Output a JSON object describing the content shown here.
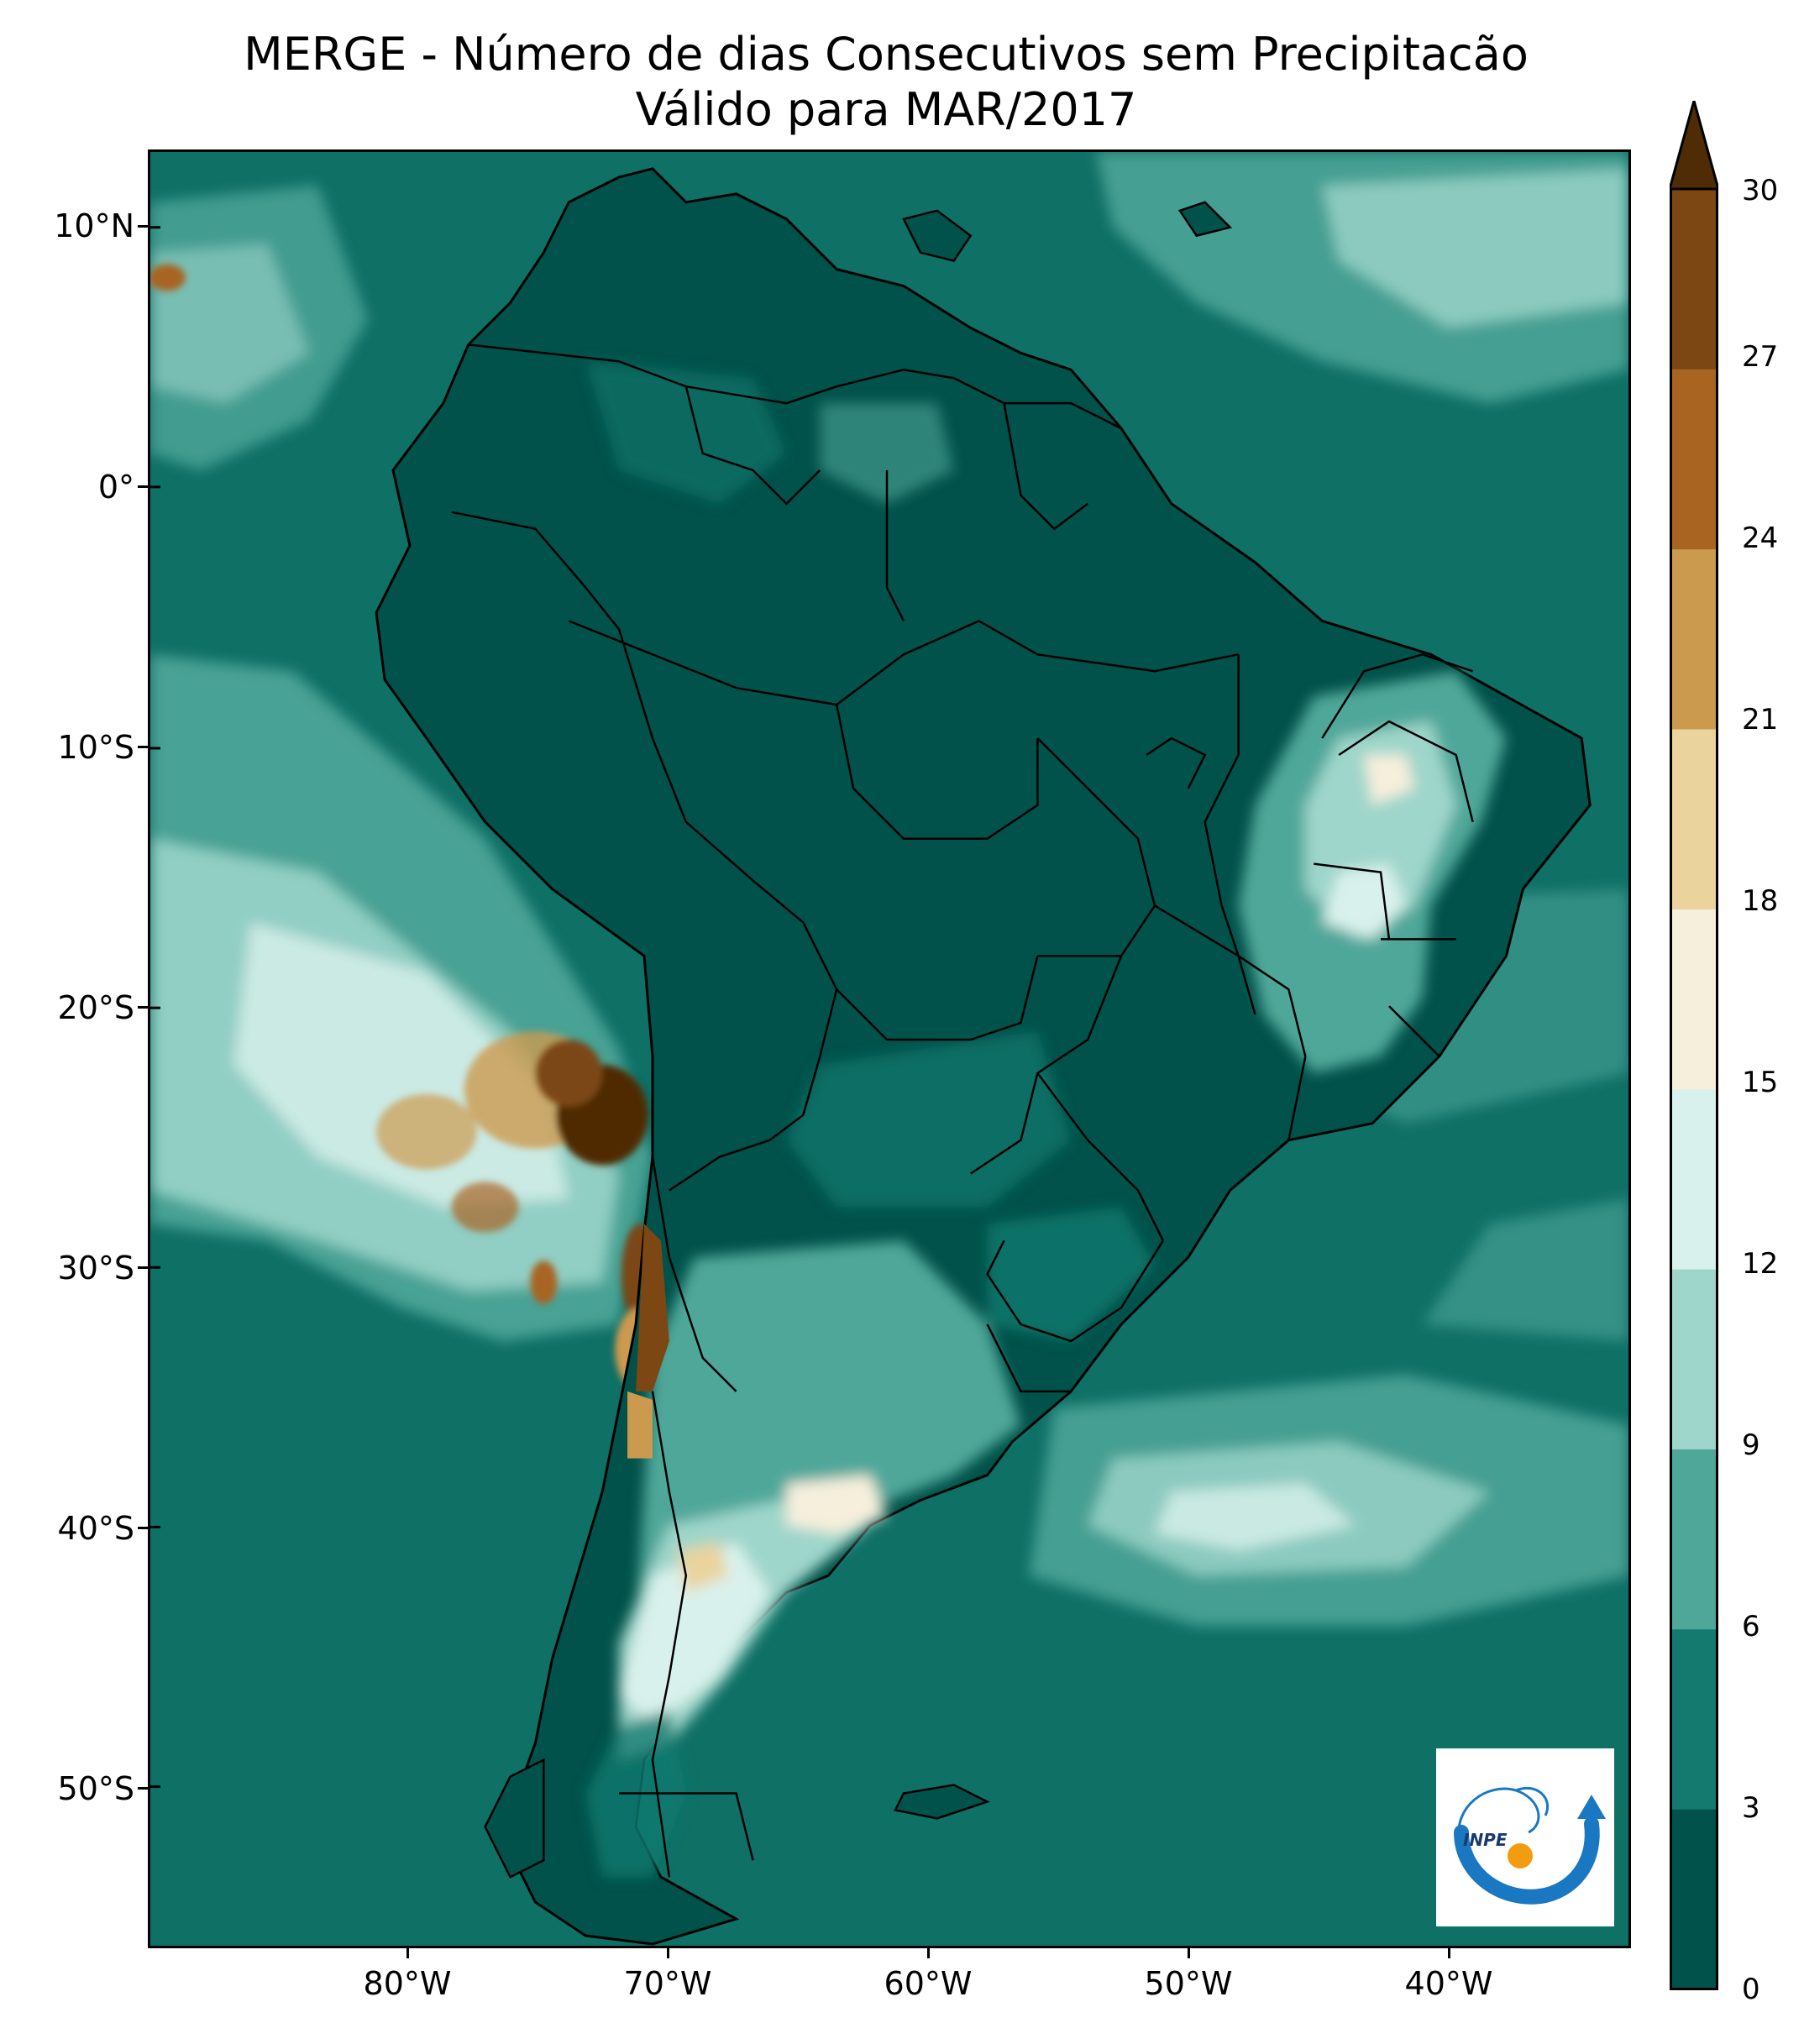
{
  "title": {
    "line1": "MERGE - Número de dias Consecutivos sem Precipitacão",
    "line2": "Válido para MAR/2017"
  },
  "axes": {
    "lat_ticks": [
      "10°N",
      "0°",
      "10°S",
      "20°S",
      "30°S",
      "40°S",
      "50°S"
    ],
    "lon_ticks": [
      "80°W",
      "70°W",
      "60°W",
      "50°W",
      "40°W"
    ]
  },
  "colorbar": {
    "ticks": [
      "0",
      "3",
      "6",
      "9",
      "12",
      "15",
      "18",
      "21",
      "24",
      "27",
      "30"
    ],
    "colors": [
      "#01524a",
      "#147a70",
      "#4fa79a",
      "#9fd6cb",
      "#d9f1ec",
      "#f6efdc",
      "#ead39c",
      "#cc9a4f",
      "#a96421",
      "#7c4712",
      "#4f2c06"
    ],
    "extend": "max"
  },
  "logo": {
    "text": "INPE"
  },
  "palette": {
    "ocean": "#0f7066",
    "dark": "#01524a",
    "mid": "#4fa79a",
    "light": "#9fd6cb",
    "pale": "#d9f1ec",
    "cream": "#f6efdc",
    "tan": "#cc9a4f",
    "brown": "#7c4712",
    "dark_brown": "#4f2c06"
  }
}
